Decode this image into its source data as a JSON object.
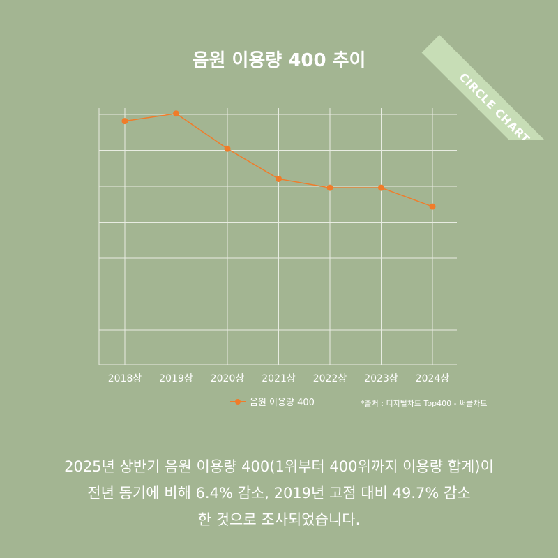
{
  "badge": {
    "label": "CIRCLE CHART"
  },
  "colors": {
    "background": "#a3b592",
    "line": "#f07c2a",
    "grid": "#e8ece2",
    "ribbon": "#c7ddb6"
  },
  "chart_data": {
    "type": "line",
    "title": "음원 이용량 400 추이",
    "categories": [
      "2018상",
      "2019상",
      "2020상",
      "2021상",
      "2022상",
      "2023상",
      "2024상"
    ],
    "series": [
      {
        "name": "음원 이용량 400",
        "values": [
          97,
          100,
          86,
          74,
          70.5,
          70.5,
          63
        ]
      }
    ],
    "ylim": [
      0,
      103
    ],
    "grid": true,
    "y_tick_labels_shown": false,
    "legend": "bottom-center"
  },
  "source": "*출처 : 디지털차트 Top400 - 써클차트",
  "caption": {
    "line1": "2025년 상반기 음원 이용량 400(1위부터 400위까지 이용량 합계)이",
    "line2": "전년 동기에 비해 6.4% 감소, 2019년 고점 대비 49.7% 감소",
    "line3": "한 것으로 조사되었습니다."
  }
}
